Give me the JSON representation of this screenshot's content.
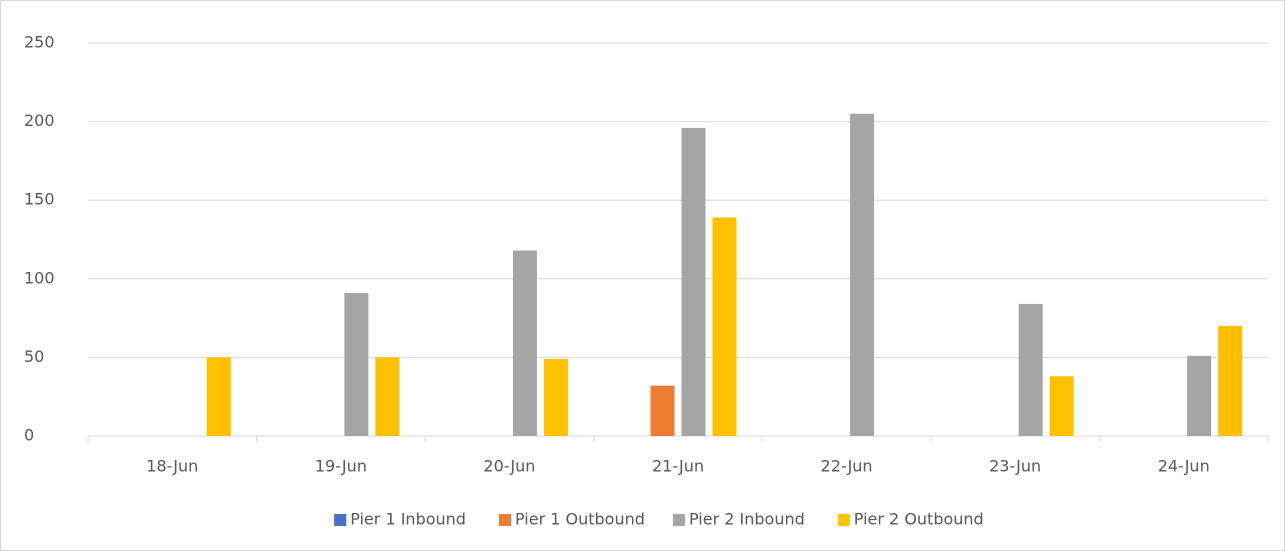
{
  "chart_data": {
    "type": "bar",
    "categories": [
      "18-Jun",
      "19-Jun",
      "20-Jun",
      "21-Jun",
      "22-Jun",
      "23-Jun",
      "24-Jun"
    ],
    "series": [
      {
        "name": "Pier 1 Inbound",
        "color": "#4472c4",
        "values": [
          0,
          0,
          0,
          0,
          0,
          0,
          0
        ]
      },
      {
        "name": "Pier 1 Outbound",
        "color": "#ed7d31",
        "values": [
          0,
          0,
          0,
          32,
          0,
          0,
          0
        ]
      },
      {
        "name": "Pier 2 Inbound",
        "color": "#a5a5a5",
        "values": [
          0,
          91,
          118,
          196,
          205,
          84,
          51
        ]
      },
      {
        "name": "Pier 2 Outbound",
        "color": "#ffc000",
        "values": [
          50,
          50,
          49,
          139,
          0,
          38,
          70
        ]
      }
    ],
    "ylim": [
      0,
      250
    ],
    "yticks": [
      0,
      50,
      100,
      150,
      200,
      250
    ],
    "grid": true,
    "legend": "bottom"
  }
}
